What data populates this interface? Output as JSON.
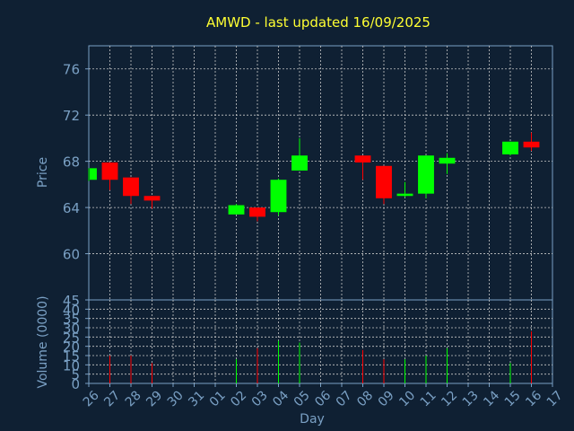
{
  "chart_data": {
    "type": "candlestick",
    "title": "AMWD - last updated 16/09/2025",
    "price_panel": {
      "ylabel": "Price",
      "ylim": [
        56,
        78
      ],
      "yticks": [
        60,
        64,
        68,
        72,
        76
      ],
      "grid": true
    },
    "volume_panel": {
      "ylabel": "Volume (0000)",
      "ylim": [
        0,
        45
      ],
      "yticks": [
        0,
        5,
        10,
        15,
        20,
        25,
        30,
        35,
        40,
        45
      ],
      "grid": true
    },
    "xlabel": "Day",
    "x_tick_labels": [
      "26",
      "27",
      "28",
      "29",
      "30",
      "31",
      "01",
      "02",
      "03",
      "04",
      "05",
      "06",
      "07",
      "08",
      "09",
      "10",
      "11",
      "12",
      "13",
      "14",
      "15",
      "16",
      "17"
    ],
    "candles": [
      {
        "day": "26",
        "open": 66.4,
        "high": 67.4,
        "low": 66.3,
        "close": 67.4
      },
      {
        "day": "27",
        "open": 67.9,
        "high": 67.9,
        "low": 65.5,
        "close": 66.4
      },
      {
        "day": "28",
        "open": 66.6,
        "high": 66.6,
        "low": 64.3,
        "close": 65.0
      },
      {
        "day": "29",
        "open": 65.0,
        "high": 65.0,
        "low": 63.9,
        "close": 64.6
      },
      {
        "day": "02",
        "open": 63.4,
        "high": 64.3,
        "low": 63.4,
        "close": 64.2
      },
      {
        "day": "03",
        "open": 64.0,
        "high": 64.0,
        "low": 62.8,
        "close": 63.2
      },
      {
        "day": "04",
        "open": 63.6,
        "high": 66.5,
        "low": 63.3,
        "close": 66.4
      },
      {
        "day": "05",
        "open": 67.2,
        "high": 70.0,
        "low": 67.2,
        "close": 68.5
      },
      {
        "day": "08",
        "open": 68.5,
        "high": 68.5,
        "low": 66.4,
        "close": 67.9
      },
      {
        "day": "09",
        "open": 67.6,
        "high": 67.6,
        "low": 64.3,
        "close": 64.8
      },
      {
        "day": "10",
        "open": 65.0,
        "high": 66.2,
        "low": 64.9,
        "close": 65.2
      },
      {
        "day": "11",
        "open": 65.2,
        "high": 68.5,
        "low": 64.8,
        "close": 68.5
      },
      {
        "day": "12",
        "open": 67.8,
        "high": 68.7,
        "low": 66.9,
        "close": 68.3
      },
      {
        "day": "15",
        "open": 68.6,
        "high": 69.7,
        "low": 68.5,
        "close": 69.7
      },
      {
        "day": "16",
        "open": 69.7,
        "high": 70.5,
        "low": 68.9,
        "close": 69.2
      }
    ],
    "volumes": [
      {
        "day": "26",
        "value": 0,
        "dir": "up"
      },
      {
        "day": "27",
        "value": 15,
        "dir": "down"
      },
      {
        "day": "28",
        "value": 15,
        "dir": "down"
      },
      {
        "day": "29",
        "value": 11,
        "dir": "down"
      },
      {
        "day": "02",
        "value": 13,
        "dir": "up"
      },
      {
        "day": "03",
        "value": 19,
        "dir": "down"
      },
      {
        "day": "04",
        "value": 23,
        "dir": "up"
      },
      {
        "day": "05",
        "value": 22,
        "dir": "up"
      },
      {
        "day": "08",
        "value": 18,
        "dir": "down"
      },
      {
        "day": "09",
        "value": 13,
        "dir": "down"
      },
      {
        "day": "10",
        "value": 13,
        "dir": "up"
      },
      {
        "day": "11",
        "value": 15,
        "dir": "up"
      },
      {
        "day": "12",
        "value": 19,
        "dir": "up"
      },
      {
        "day": "15",
        "value": 11,
        "dir": "up"
      },
      {
        "day": "16",
        "value": 28,
        "dir": "down"
      }
    ],
    "colors": {
      "background": "#0f2033",
      "up": "#00ff00",
      "down": "#ff0000",
      "axis": "#7aa0c4",
      "title": "#ffff33",
      "grid": "#c8c8c8"
    }
  }
}
